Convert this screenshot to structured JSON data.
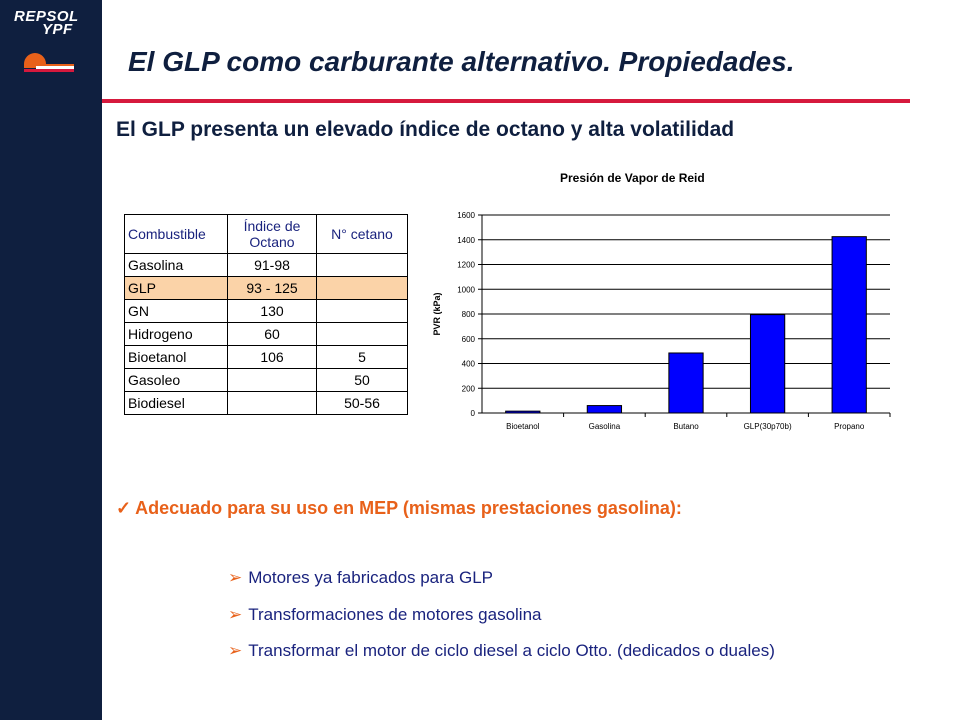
{
  "logo": {
    "line1": "REPSOL",
    "line2": "YPF"
  },
  "title": "El GLP como carburante alternativo. Propiedades.",
  "subtitle": "El GLP presenta un elevado índice de octano y alta volatilidad",
  "table": {
    "headers": [
      "Combustible",
      "Índice de Octano",
      "N° cetano"
    ],
    "rows": [
      [
        "Gasolina",
        "91-98",
        ""
      ],
      [
        "GLP",
        "93 - 125",
        ""
      ],
      [
        "GN",
        "130",
        ""
      ],
      [
        "Hidrogeno",
        "60",
        ""
      ],
      [
        "Bioetanol",
        "106",
        "5"
      ],
      [
        "Gasoleo",
        "",
        "50"
      ],
      [
        "Biodiesel",
        "",
        "50-56"
      ]
    ],
    "highlight_row": 1,
    "highlight_color": "#fbd3a8"
  },
  "chart_data": {
    "type": "bar",
    "title": "Presión de Vapor de Reid",
    "ylabel": "PVR (kPa)",
    "xlabel": "",
    "categories": [
      "Bioetanol",
      "Gasolina",
      "Butano",
      "GLP(30p70b)",
      "Propano"
    ],
    "values": [
      15,
      60,
      485,
      795,
      1425
    ],
    "ylim": [
      0,
      1600
    ],
    "yticks": [
      0,
      200,
      400,
      600,
      800,
      1000,
      1200,
      1400,
      1600
    ],
    "grid": true,
    "bar_color": "#0000ff"
  },
  "advantage": {
    "check": "✓",
    "text": "Adecuado para su uso en MEP (mismas prestaciones gasolina):"
  },
  "bullets": {
    "arrow": "➢",
    "items": [
      "Motores ya fabricados para GLP",
      "Transformaciones de motores gasolina",
      "Transformar el motor de ciclo diesel a ciclo Otto. (dedicados o duales)"
    ]
  },
  "colors": {
    "navy": "#0f1f3f",
    "red": "#d6193d",
    "orange": "#e8611a"
  }
}
